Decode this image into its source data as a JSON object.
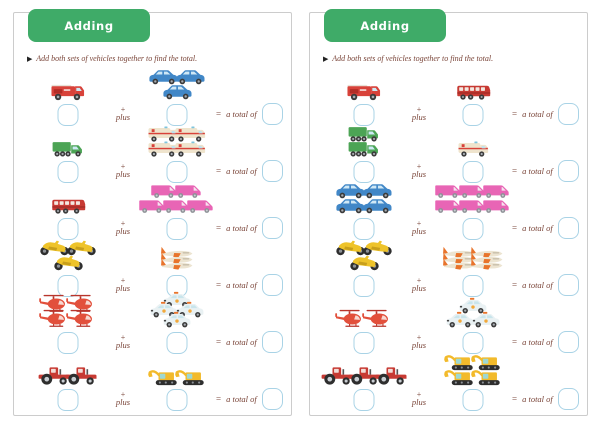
{
  "page_title": "Adding",
  "instruction": "Add both sets of vehicles together to find the total.",
  "labels": {
    "arrow_bullet": "▶",
    "plus_sign": "+",
    "plus_word": "plus",
    "equals": "=",
    "total_phrase": "a total of"
  },
  "colors": {
    "header_green": "#3fab68",
    "text_maroon": "#7a4539",
    "box_blue": "#a9d3e6",
    "page_border": "#cccccc"
  },
  "answer_boxes": {
    "value": "",
    "note": "all answer boxes are blank"
  },
  "pages": [
    {
      "name": "left-worksheet",
      "rows": [
        {
          "group1": {
            "vehicle": "fire-truck",
            "count": 1,
            "rows": [
              1
            ]
          },
          "group2": {
            "vehicle": "blue-car",
            "count": 3,
            "rows": [
              2,
              1
            ]
          }
        },
        {
          "group1": {
            "vehicle": "green-truck",
            "count": 1,
            "rows": [
              1
            ]
          },
          "group2": {
            "vehicle": "ambulance",
            "count": 4,
            "rows": [
              2,
              2
            ]
          }
        },
        {
          "group1": {
            "vehicle": "red-bus",
            "count": 1,
            "rows": [
              1
            ]
          },
          "group2": {
            "vehicle": "pink-van",
            "count": 5,
            "rows": [
              2,
              3
            ]
          }
        },
        {
          "group1": {
            "vehicle": "motorcycle",
            "count": 3,
            "rows": [
              2,
              1
            ]
          },
          "group2": {
            "vehicle": "airplane",
            "count": 3,
            "rows": [
              1,
              1,
              1
            ]
          }
        },
        {
          "group1": {
            "vehicle": "helicopter",
            "count": 4,
            "rows": [
              2,
              2
            ]
          },
          "group2": {
            "vehicle": "police-car",
            "count": 4,
            "rows": [
              1,
              2,
              1
            ]
          }
        },
        {
          "group1": {
            "vehicle": "tractor",
            "count": 2,
            "rows": [
              2
            ]
          },
          "group2": {
            "vehicle": "excavator",
            "count": 2,
            "rows": [
              2
            ]
          }
        }
      ]
    },
    {
      "name": "right-worksheet",
      "rows": [
        {
          "group1": {
            "vehicle": "fire-truck",
            "count": 1,
            "rows": [
              1
            ]
          },
          "group2": {
            "vehicle": "red-bus",
            "count": 1,
            "rows": [
              1
            ]
          }
        },
        {
          "group1": {
            "vehicle": "green-truck",
            "count": 2,
            "rows": [
              1,
              1
            ]
          },
          "group2": {
            "vehicle": "ambulance",
            "count": 1,
            "rows": [
              1
            ]
          }
        },
        {
          "group1": {
            "vehicle": "blue-car",
            "count": 4,
            "rows": [
              2,
              2
            ]
          },
          "group2": {
            "vehicle": "pink-van",
            "count": 6,
            "rows": [
              3,
              3
            ]
          }
        },
        {
          "group1": {
            "vehicle": "motorcycle",
            "count": 3,
            "rows": [
              2,
              1
            ]
          },
          "group2": {
            "vehicle": "airplane",
            "count": 6,
            "rows": [
              2,
              2,
              2
            ]
          }
        },
        {
          "group1": {
            "vehicle": "helicopter",
            "count": 2,
            "rows": [
              2
            ]
          },
          "group2": {
            "vehicle": "police-car",
            "count": 3,
            "rows": [
              1,
              2
            ]
          }
        },
        {
          "group1": {
            "vehicle": "tractor",
            "count": 3,
            "rows": [
              3
            ]
          },
          "group2": {
            "vehicle": "excavator",
            "count": 4,
            "rows": [
              2,
              2
            ]
          }
        }
      ]
    }
  ]
}
